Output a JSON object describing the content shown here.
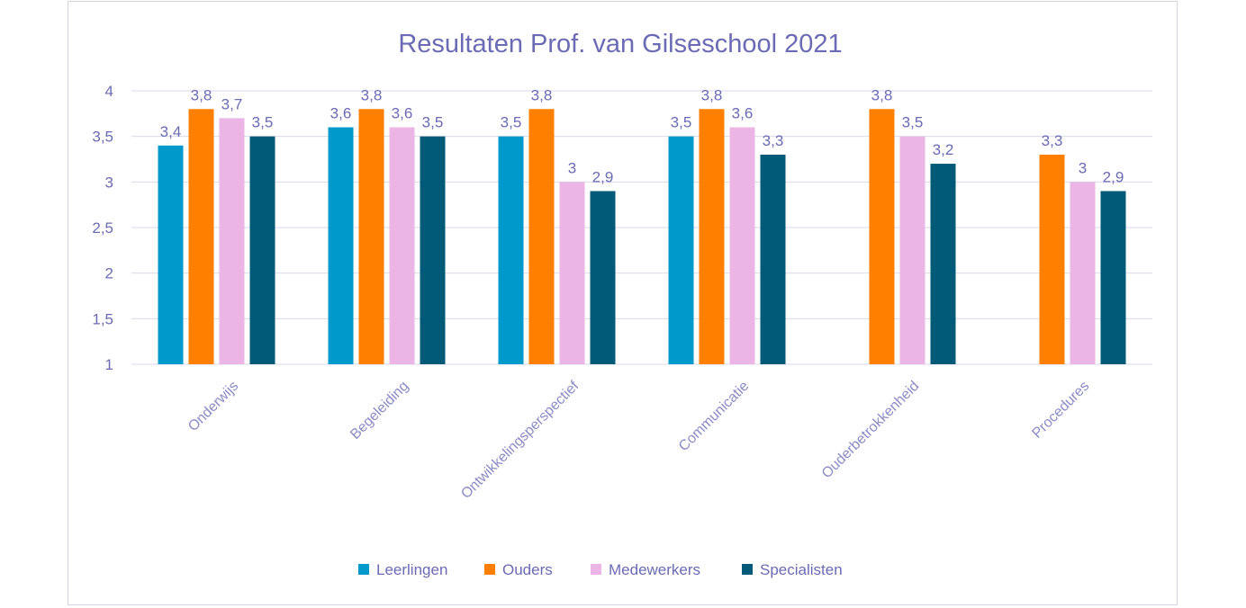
{
  "chart_data": {
    "type": "bar",
    "title": "Resultaten Prof. van Gilseschool 2021",
    "xlabel": "",
    "ylabel": "",
    "ylim": [
      1,
      4
    ],
    "yticks": [
      1,
      1.5,
      2,
      2.5,
      3,
      3.5,
      4
    ],
    "ytick_labels": [
      "1",
      "1,5",
      "2",
      "2,5",
      "3",
      "3,5",
      "4"
    ],
    "grid": true,
    "legend_position": "bottom",
    "categories": [
      "Onderwijs",
      "Begeleiding",
      "Ontwikkelingsperspectief",
      "Communicatie",
      "Ouderbetrokkenheid",
      "Procedures"
    ],
    "series": [
      {
        "name": "Leerlingen",
        "color": "#0099cc",
        "values": [
          3.4,
          3.6,
          3.5,
          3.5,
          null,
          null
        ],
        "labels": [
          "3,4",
          "3,6",
          "3,5",
          "3,5",
          "",
          ""
        ]
      },
      {
        "name": "Ouders",
        "color": "#ff7f00",
        "values": [
          3.8,
          3.8,
          3.8,
          3.8,
          3.8,
          3.3
        ],
        "labels": [
          "3,8",
          "3,8",
          "3,8",
          "3,8",
          "3,8",
          "3,3"
        ]
      },
      {
        "name": "Medewerkers",
        "color": "#ebb5e6",
        "values": [
          3.7,
          3.6,
          3.0,
          3.6,
          3.5,
          3.0
        ],
        "labels": [
          "3,7",
          "3,6",
          "3",
          "3,6",
          "3,5",
          "3"
        ]
      },
      {
        "name": "Specialisten",
        "color": "#005a78",
        "values": [
          3.5,
          3.5,
          2.9,
          3.3,
          3.2,
          2.9
        ],
        "labels": [
          "3,5",
          "3,5",
          "2,9",
          "3,3",
          "3,2",
          "2,9"
        ]
      }
    ]
  }
}
